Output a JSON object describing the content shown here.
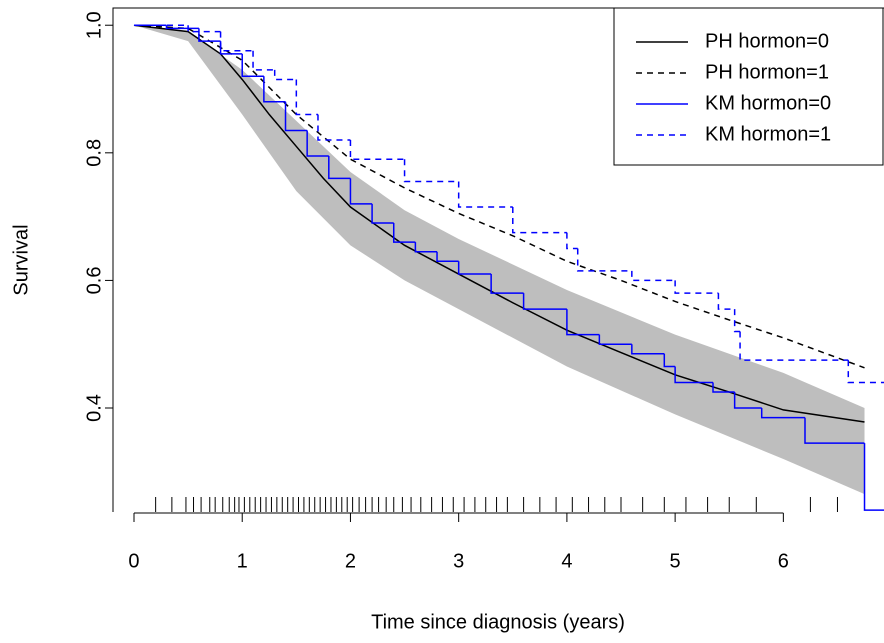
{
  "chart_data": {
    "type": "survival",
    "xlabel": "Time since diagnosis (years)",
    "ylabel": "Survival",
    "xlim": [
      -0.194,
      6.93
    ],
    "ylim": [
      0.237,
      1.027
    ],
    "xticks": [
      0,
      1,
      2,
      3,
      4,
      5,
      6
    ],
    "yticks": [
      0.4,
      0.6,
      0.8,
      {
        "value": 1.0,
        "label": "1.0"
      }
    ],
    "legend": "top-right",
    "band": {
      "color": "#bebebe",
      "x": [
        0,
        0.5,
        1,
        1.5,
        2,
        2.5,
        3,
        4,
        5,
        6,
        6.75
      ],
      "upper": [
        1,
        0.99,
        0.93,
        0.85,
        0.77,
        0.71,
        0.665,
        0.585,
        0.515,
        0.455,
        0.4
      ],
      "lower": [
        1,
        0.975,
        0.86,
        0.74,
        0.655,
        0.6,
        0.555,
        0.465,
        0.39,
        0.32,
        0.265
      ]
    },
    "series": [
      {
        "name": "PH hormon=0",
        "color": "#000000",
        "style": "solid",
        "step": false,
        "x": [
          0,
          0.5,
          0.8,
          1,
          1.25,
          1.5,
          1.75,
          2,
          2.5,
          3,
          3.5,
          4,
          4.5,
          5,
          5.5,
          6,
          6.75
        ],
        "values": [
          1,
          0.99,
          0.955,
          0.915,
          0.86,
          0.81,
          0.76,
          0.715,
          0.655,
          0.61,
          0.565,
          0.522,
          0.487,
          0.452,
          0.425,
          0.397,
          0.378
        ]
      },
      {
        "name": "PH hormon=1",
        "color": "#000000",
        "style": "dashed",
        "step": false,
        "x": [
          0,
          0.5,
          1,
          1.5,
          2,
          2.5,
          3,
          3.5,
          4,
          4.5,
          5,
          5.5,
          6,
          6.75
        ],
        "values": [
          1,
          0.995,
          0.945,
          0.86,
          0.79,
          0.745,
          0.705,
          0.67,
          0.63,
          0.6,
          0.567,
          0.538,
          0.51,
          0.463
        ]
      },
      {
        "name": "KM hormon=0",
        "color": "#0000ff",
        "style": "solid",
        "step": true,
        "x": [
          0,
          0.3,
          0.6,
          0.8,
          1,
          1.2,
          1.4,
          1.6,
          1.8,
          2,
          2.2,
          2.4,
          2.6,
          2.8,
          3,
          3.3,
          3.6,
          4,
          4.3,
          4.6,
          4.9,
          5,
          5.35,
          5.55,
          5.8,
          6.2,
          6.75
        ],
        "values": [
          1,
          0.995,
          0.975,
          0.955,
          0.92,
          0.88,
          0.835,
          0.795,
          0.76,
          0.72,
          0.69,
          0.66,
          0.645,
          0.63,
          0.61,
          0.58,
          0.555,
          0.515,
          0.5,
          0.485,
          0.465,
          0.44,
          0.425,
          0.4,
          0.385,
          0.345,
          0.24
        ]
      },
      {
        "name": "KM hormon=1",
        "color": "#0000ff",
        "style": "dashed",
        "step": true,
        "x": [
          0,
          0.5,
          0.8,
          1.1,
          1.3,
          1.5,
          1.7,
          2,
          2.5,
          3,
          3.5,
          4,
          4.1,
          4.6,
          5,
          5.4,
          5.55,
          5.6,
          6.6
        ],
        "values": [
          1,
          0.99,
          0.96,
          0.93,
          0.915,
          0.86,
          0.82,
          0.79,
          0.755,
          0.715,
          0.675,
          0.65,
          0.615,
          0.6,
          0.58,
          0.555,
          0.52,
          0.475,
          0.44
        ]
      }
    ],
    "rug": [
      0.2,
      0.35,
      0.48,
      0.55,
      0.62,
      0.7,
      0.75,
      0.82,
      0.88,
      0.93,
      0.97,
      1.02,
      1.07,
      1.12,
      1.17,
      1.22,
      1.27,
      1.32,
      1.37,
      1.42,
      1.47,
      1.52,
      1.57,
      1.62,
      1.67,
      1.72,
      1.77,
      1.82,
      1.87,
      1.92,
      1.97,
      2.02,
      2.08,
      2.14,
      2.2,
      2.26,
      2.33,
      2.4,
      2.48,
      2.56,
      2.65,
      2.75,
      2.85,
      2.95,
      3.05,
      3.15,
      3.25,
      3.35,
      3.45,
      3.6,
      3.75,
      3.9,
      4.05,
      4.2,
      4.35,
      4.5,
      4.7,
      4.9,
      5.1,
      5.3,
      5.5,
      5.75,
      6.25,
      6.5
    ]
  }
}
